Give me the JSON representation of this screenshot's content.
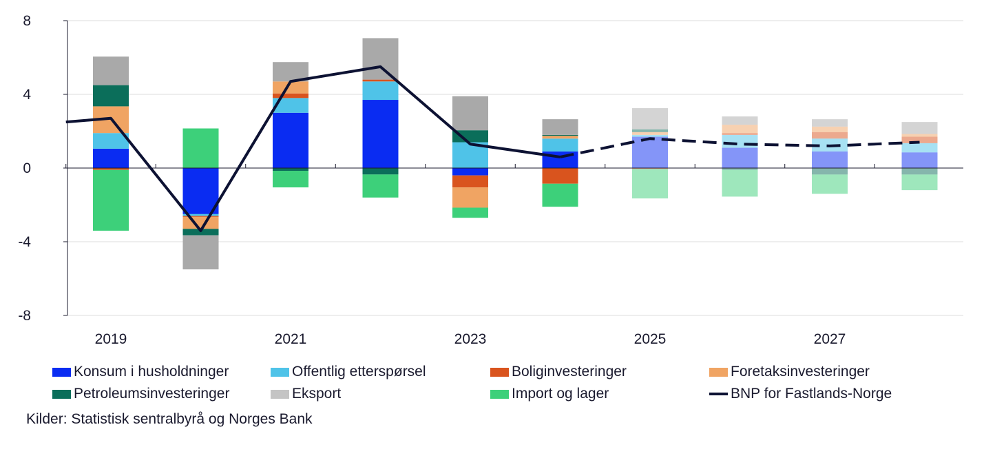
{
  "chart_data": {
    "type": "bar",
    "stacked": true,
    "categories": [
      "2019",
      "2020",
      "2021",
      "2022",
      "2023",
      "2024",
      "2025",
      "2026",
      "2027",
      "2028"
    ],
    "x_tick_labels": [
      "2019",
      "2021",
      "2023",
      "2025",
      "2027"
    ],
    "y_ticks": [
      "8",
      "4",
      "0",
      "-4",
      "-8"
    ],
    "ylim": [
      -8,
      8
    ],
    "projection_from": "2025",
    "series": [
      {
        "name": "Konsum i husholdninger",
        "color": "#0a2cf2",
        "values": [
          1.05,
          -2.5,
          3.0,
          3.7,
          -0.4,
          0.9,
          1.7,
          1.1,
          0.9,
          0.85
        ]
      },
      {
        "name": "Offentlig etterspørsel",
        "color": "#4fc3e8",
        "values": [
          0.85,
          -0.1,
          0.8,
          1.0,
          1.4,
          0.7,
          0.1,
          0.7,
          0.7,
          0.5
        ]
      },
      {
        "name": "Boliginvesteringer",
        "color": "#d9541e",
        "values": [
          -0.1,
          -0.05,
          0.25,
          0.1,
          -0.65,
          -0.85,
          -0.05,
          0.1,
          0.35,
          0.35
        ]
      },
      {
        "name": "Foretaksinvesteringer",
        "color": "#f0a463",
        "values": [
          1.45,
          -0.65,
          0.65,
          0.0,
          -1.1,
          0.15,
          0.15,
          0.45,
          0.3,
          0.15
        ]
      },
      {
        "name": "Petroleumsinvesteringer",
        "color": "#0b6e5a",
        "values": [
          1.15,
          -0.35,
          -0.15,
          -0.35,
          0.65,
          0.05,
          0.15,
          -0.1,
          -0.35,
          -0.35
        ]
      },
      {
        "name": "Eksport",
        "color": "#a9a9a9",
        "values": [
          1.55,
          -1.85,
          1.05,
          2.25,
          1.85,
          0.85,
          1.15,
          0.45,
          0.4,
          0.65
        ]
      },
      {
        "name": "Import og lager",
        "color": "#3dd07a",
        "values": [
          -3.3,
          2.15,
          -0.9,
          -1.25,
          -0.55,
          -1.25,
          -1.6,
          -1.45,
          -1.05,
          -0.85
        ]
      }
    ],
    "line": {
      "name": "BNP for Fastlands-Norge",
      "color": "#0d1233",
      "x": [
        2018.5,
        2019,
        2020,
        2021,
        2022,
        2023,
        2024,
        2025,
        2026,
        2027,
        2028
      ],
      "values": [
        2.5,
        2.7,
        -3.4,
        4.7,
        5.5,
        1.3,
        0.6,
        1.6,
        1.3,
        1.2,
        1.4
      ]
    }
  },
  "legend": [
    {
      "label": "Konsum i husholdninger",
      "color": "#0a2cf2",
      "kind": "bar"
    },
    {
      "label": "Offentlig etterspørsel",
      "color": "#4fc3e8",
      "kind": "bar"
    },
    {
      "label": "Boliginvesteringer",
      "color": "#d9541e",
      "kind": "bar"
    },
    {
      "label": "Foretaksinvesteringer",
      "color": "#f0a463",
      "kind": "bar"
    },
    {
      "label": "Petroleumsinvesteringer",
      "color": "#0b6e5a",
      "kind": "bar"
    },
    {
      "label": "Eksport",
      "color": "#c4c4c4",
      "kind": "bar"
    },
    {
      "label": "Import og lager",
      "color": "#3dd07a",
      "kind": "bar"
    },
    {
      "label": "BNP for Fastlands-Norge",
      "color": "#0d1233",
      "kind": "line"
    }
  ],
  "source": "Kilder: Statistisk sentralbyrå og Norges Bank"
}
